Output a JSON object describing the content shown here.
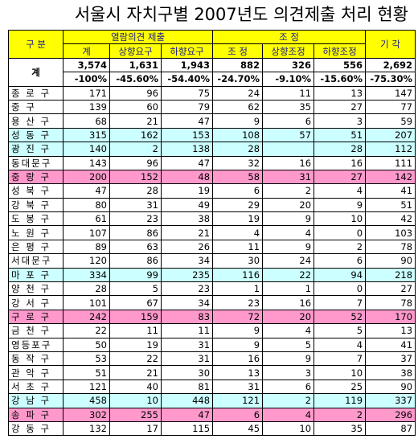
{
  "title": "서울시 자치구별 2007년도 의견제출 처리 현황",
  "header": {
    "gubun": "구  분",
    "opinion_group": "열람의견 제출",
    "adjust_group": "조     정",
    "dismiss": "기  각",
    "sub": [
      "계",
      "상향요구",
      "하향요구",
      "조  정",
      "상향조정",
      "하향조정"
    ]
  },
  "total": {
    "label": "계",
    "counts": [
      "3,574",
      "1,631",
      "1,943",
      "882",
      "326",
      "556",
      "2,692"
    ],
    "percents": [
      "-100%",
      "-45.60%",
      "-54.40%",
      "-24.70%",
      "-9.10%",
      "-15.60%",
      "-75.30%"
    ]
  },
  "rows": [
    {
      "name": "종 로 구",
      "hl": "",
      "v": [
        "171",
        "96",
        "75",
        "24",
        "11",
        "13",
        "147"
      ]
    },
    {
      "name": "중    구",
      "hl": "",
      "v": [
        "139",
        "60",
        "79",
        "62",
        "35",
        "27",
        "77"
      ]
    },
    {
      "name": "용 산 구",
      "hl": "",
      "v": [
        "68",
        "21",
        "47",
        "9",
        "6",
        "3",
        "59"
      ]
    },
    {
      "name": "성 동 구",
      "hl": "cyan",
      "v": [
        "315",
        "162",
        "153",
        "108",
        "57",
        "51",
        "207"
      ]
    },
    {
      "name": "광 진 구",
      "hl": "cyan",
      "v": [
        "140",
        "2",
        "138",
        "28",
        "",
        "28",
        "112"
      ]
    },
    {
      "name": "동대문구",
      "hl": "",
      "v": [
        "143",
        "96",
        "47",
        "32",
        "16",
        "16",
        "111"
      ]
    },
    {
      "name": "중 랑 구",
      "hl": "pink",
      "v": [
        "200",
        "152",
        "48",
        "58",
        "31",
        "27",
        "142"
      ]
    },
    {
      "name": "성 북 구",
      "hl": "",
      "v": [
        "47",
        "28",
        "19",
        "6",
        "2",
        "4",
        "41"
      ]
    },
    {
      "name": "강 북 구",
      "hl": "",
      "v": [
        "80",
        "31",
        "49",
        "29",
        "20",
        "9",
        "51"
      ]
    },
    {
      "name": "도 봉 구",
      "hl": "",
      "v": [
        "61",
        "23",
        "38",
        "19",
        "9",
        "10",
        "42"
      ]
    },
    {
      "name": "노 원 구",
      "hl": "",
      "v": [
        "107",
        "86",
        "21",
        "4",
        "4",
        "0",
        "103"
      ]
    },
    {
      "name": "은 평 구",
      "hl": "",
      "v": [
        "89",
        "63",
        "26",
        "11",
        "9",
        "2",
        "78"
      ]
    },
    {
      "name": "서대문구",
      "hl": "",
      "v": [
        "120",
        "86",
        "34",
        "30",
        "24",
        "6",
        "90"
      ]
    },
    {
      "name": "마 포 구",
      "hl": "cyan",
      "v": [
        "334",
        "99",
        "235",
        "116",
        "22",
        "94",
        "218"
      ]
    },
    {
      "name": "양 천 구",
      "hl": "",
      "v": [
        "28",
        "5",
        "23",
        "1",
        "1",
        "0",
        "27"
      ]
    },
    {
      "name": "강 서 구",
      "hl": "",
      "v": [
        "101",
        "67",
        "34",
        "23",
        "16",
        "7",
        "78"
      ]
    },
    {
      "name": "구 로 구",
      "hl": "pink",
      "v": [
        "242",
        "159",
        "83",
        "72",
        "20",
        "52",
        "170"
      ]
    },
    {
      "name": "금 천 구",
      "hl": "",
      "v": [
        "22",
        "11",
        "11",
        "9",
        "4",
        "5",
        "13"
      ]
    },
    {
      "name": "영등포구",
      "hl": "",
      "v": [
        "50",
        "19",
        "31",
        "9",
        "5",
        "4",
        "41"
      ]
    },
    {
      "name": "동 작 구",
      "hl": "",
      "v": [
        "53",
        "22",
        "31",
        "16",
        "9",
        "7",
        "37"
      ]
    },
    {
      "name": "관 악 구",
      "hl": "",
      "v": [
        "51",
        "21",
        "30",
        "13",
        "3",
        "10",
        "38"
      ]
    },
    {
      "name": "서 초 구",
      "hl": "",
      "v": [
        "121",
        "40",
        "81",
        "31",
        "6",
        "25",
        "90"
      ]
    },
    {
      "name": "강 남 구",
      "hl": "cyan",
      "v": [
        "458",
        "10",
        "448",
        "121",
        "2",
        "119",
        "337"
      ]
    },
    {
      "name": "송 파 구",
      "hl": "pink",
      "v": [
        "302",
        "255",
        "47",
        "6",
        "4",
        "2",
        "296"
      ]
    },
    {
      "name": "강 동 구",
      "hl": "",
      "v": [
        "132",
        "17",
        "115",
        "45",
        "10",
        "35",
        "87"
      ]
    }
  ]
}
